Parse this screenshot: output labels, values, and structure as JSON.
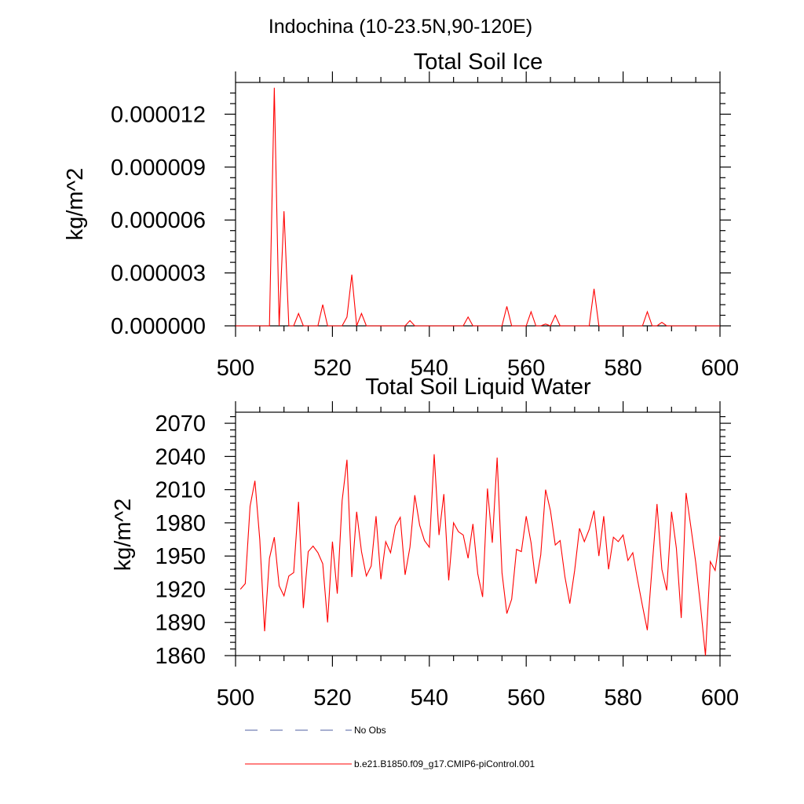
{
  "page_title": "Indochina (10-23.5N,90-120E)",
  "colors": {
    "model_line": "#ff0000",
    "obs_line": "#5060a0",
    "axes": "#000000"
  },
  "legend": {
    "obs_label": "No Obs",
    "model_label": "b.e21.B1850.f09_g17.CMIP6-piControl.001"
  },
  "chart_data": [
    {
      "type": "line",
      "title": "Total Soil Ice",
      "xlabel": "",
      "ylabel": "kg/m^2",
      "xlim": [
        500,
        600
      ],
      "ylim": [
        0,
        1.38e-05
      ],
      "x_ticks": [
        500,
        520,
        540,
        560,
        580,
        600
      ],
      "x_tick_labels": [
        "500",
        "520",
        "540",
        "560",
        "580",
        "600"
      ],
      "y_ticks": [
        0,
        3e-06,
        6e-06,
        9e-06,
        1.2e-05
      ],
      "y_tick_labels": [
        "0.000000",
        "0.000003",
        "0.000006",
        "0.000009",
        "0.000012"
      ],
      "grid": false,
      "series": [
        {
          "name": "b.e21.B1850.f09_g17.CMIP6-piControl.001",
          "x": [
            500,
            501,
            502,
            503,
            504,
            505,
            506,
            507,
            508,
            509,
            510,
            511,
            512,
            513,
            514,
            515,
            516,
            517,
            518,
            519,
            520,
            521,
            522,
            523,
            524,
            525,
            526,
            527,
            528,
            529,
            530,
            531,
            532,
            533,
            534,
            535,
            536,
            537,
            538,
            539,
            540,
            541,
            542,
            543,
            544,
            545,
            546,
            547,
            548,
            549,
            550,
            551,
            552,
            553,
            554,
            555,
            556,
            557,
            558,
            559,
            560,
            561,
            562,
            563,
            564,
            565,
            566,
            567,
            568,
            569,
            570,
            571,
            572,
            573,
            574,
            575,
            576,
            577,
            578,
            579,
            580,
            581,
            582,
            583,
            584,
            585,
            586,
            587,
            588,
            589,
            590,
            591,
            592,
            593,
            594,
            595,
            596,
            597,
            598,
            599,
            600
          ],
          "values": [
            0,
            0,
            0,
            0,
            0,
            0,
            0,
            0,
            1.35e-05,
            0,
            6.5e-06,
            0,
            0,
            7e-07,
            0,
            0,
            0,
            0,
            1.2e-06,
            0,
            0,
            0,
            0,
            5e-07,
            2.9e-06,
            0,
            7e-07,
            0,
            0,
            0,
            0,
            0,
            0,
            0,
            0,
            0,
            3e-07,
            0,
            0,
            0,
            0,
            0,
            0,
            0,
            0,
            0,
            0,
            0,
            5e-07,
            0,
            0,
            0,
            0,
            0,
            0,
            0,
            1.1e-06,
            0,
            0,
            0,
            0,
            8e-07,
            0,
            0,
            1e-07,
            0,
            6e-07,
            0,
            0,
            0,
            0,
            0,
            0,
            0,
            2.1e-06,
            0,
            0,
            0,
            0,
            0,
            0,
            0,
            0,
            0,
            0,
            8e-07,
            0,
            0,
            2e-07,
            0,
            0,
            0,
            0,
            0,
            0,
            0,
            0,
            0,
            0,
            0,
            0
          ]
        }
      ]
    },
    {
      "type": "line",
      "title": "Total Soil Liquid Water",
      "xlabel": "",
      "ylabel": "kg/m^2",
      "xlim": [
        500,
        600
      ],
      "ylim": [
        1860,
        2080
      ],
      "x_ticks": [
        500,
        520,
        540,
        560,
        580,
        600
      ],
      "x_tick_labels": [
        "500",
        "520",
        "540",
        "560",
        "580",
        "600"
      ],
      "y_ticks": [
        1860,
        1890,
        1920,
        1950,
        1980,
        2010,
        2040,
        2070
      ],
      "y_tick_labels": [
        "1860",
        "1890",
        "1920",
        "1950",
        "1980",
        "2010",
        "2040",
        "2070"
      ],
      "grid": false,
      "series": [
        {
          "name": "b.e21.B1850.f09_g17.CMIP6-piControl.001",
          "x": [
            501,
            502,
            503,
            504,
            505,
            506,
            507,
            508,
            509,
            510,
            511,
            512,
            513,
            514,
            515,
            516,
            517,
            518,
            519,
            520,
            521,
            522,
            523,
            524,
            525,
            526,
            527,
            528,
            529,
            530,
            531,
            532,
            533,
            534,
            535,
            536,
            537,
            538,
            539,
            540,
            541,
            542,
            543,
            544,
            545,
            546,
            547,
            548,
            549,
            550,
            551,
            552,
            553,
            554,
            555,
            556,
            557,
            558,
            559,
            560,
            561,
            562,
            563,
            564,
            565,
            566,
            567,
            568,
            569,
            570,
            571,
            572,
            573,
            574,
            575,
            576,
            577,
            578,
            579,
            580,
            581,
            582,
            583,
            584,
            585,
            586,
            587,
            588,
            589,
            590,
            591,
            592,
            593,
            594,
            595,
            596,
            597,
            598,
            599,
            600
          ],
          "values": [
            1920,
            1925,
            1995,
            2018,
            1965,
            1882,
            1948,
            1967,
            1923,
            1914,
            1932,
            1935,
            1999,
            1903,
            1954,
            1959,
            1953,
            1943,
            1890,
            1963,
            1916,
            2000,
            2037,
            1931,
            1990,
            1954,
            1932,
            1941,
            1986,
            1929,
            1963,
            1953,
            1977,
            1985,
            1933,
            1958,
            2005,
            1978,
            1964,
            1958,
            2042,
            1969,
            2006,
            1928,
            1980,
            1972,
            1969,
            1948,
            1979,
            1934,
            1913,
            2011,
            1962,
            2039,
            1935,
            1898,
            1911,
            1956,
            1954,
            1986,
            1962,
            1925,
            1951,
            2010,
            1991,
            1960,
            1964,
            1931,
            1907,
            1937,
            1975,
            1963,
            1974,
            1991,
            1950,
            1986,
            1938,
            1967,
            1963,
            1969,
            1946,
            1953,
            1928,
            1905,
            1883,
            1941,
            1997,
            1938,
            1919,
            1990,
            1957,
            1894,
            2007,
            1976,
            1944,
            1904,
            1860,
            1945,
            1937,
            1968
          ]
        }
      ]
    }
  ]
}
